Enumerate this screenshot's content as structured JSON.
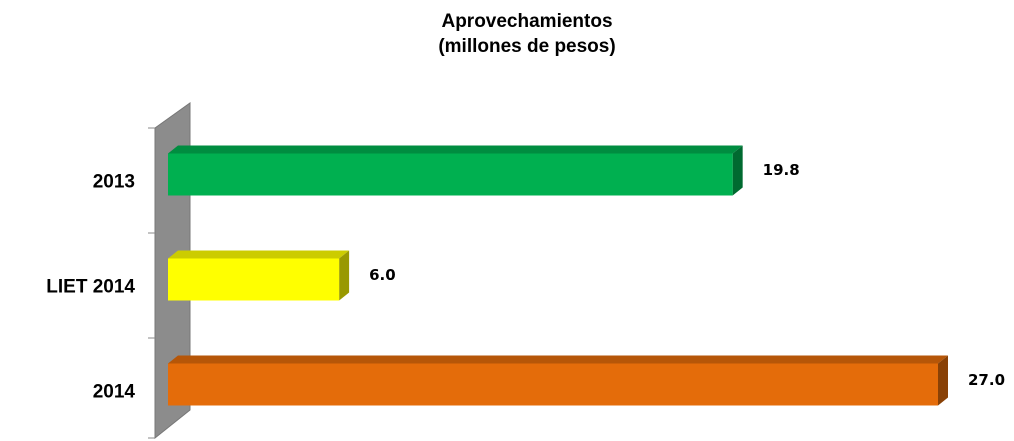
{
  "chart_data": {
    "type": "bar3d_horizontal",
    "title": "Aprovechamientos",
    "subtitle": "(millones de pesos)",
    "categories": [
      "2013",
      "LIET 2014",
      "2014"
    ],
    "values": [
      19.8,
      6.0,
      27.0
    ],
    "value_labels": [
      "19.8",
      "6.0",
      "27.0"
    ],
    "colors": [
      "#00b050",
      "#ffff00",
      "#e46c0a"
    ]
  }
}
